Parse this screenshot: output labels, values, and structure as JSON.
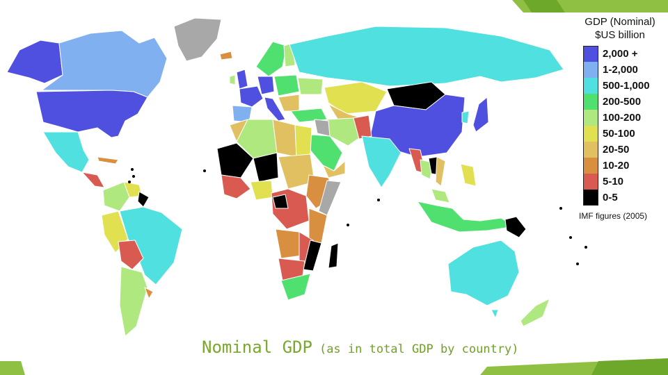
{
  "legend": {
    "title_line1": "GDP (Nominal)",
    "title_line2": "$US billion",
    "items": [
      {
        "label": "2,000 +",
        "color": "#5050e0"
      },
      {
        "label": "1-2,000",
        "color": "#80b0f0"
      },
      {
        "label": "500-1,000",
        "color": "#50e0e0"
      },
      {
        "label": "200-500",
        "color": "#50e070"
      },
      {
        "label": "100-200",
        "color": "#b0e880"
      },
      {
        "label": "50-100",
        "color": "#e0e050"
      },
      {
        "label": "20-50",
        "color": "#e0c060"
      },
      {
        "label": "10-20",
        "color": "#d89040"
      },
      {
        "label": "5-10",
        "color": "#d85a50"
      },
      {
        "label": "0-5",
        "color": "#000000"
      }
    ],
    "note": "IMF figures (2005)"
  },
  "caption": {
    "main": "Nominal GDP",
    "sub": "(as in total GDP by country)"
  },
  "colors": {
    "accent_green": "#7ab51d",
    "accent_dark": "#5f9a1a",
    "no_data": "#a8a8a8"
  }
}
